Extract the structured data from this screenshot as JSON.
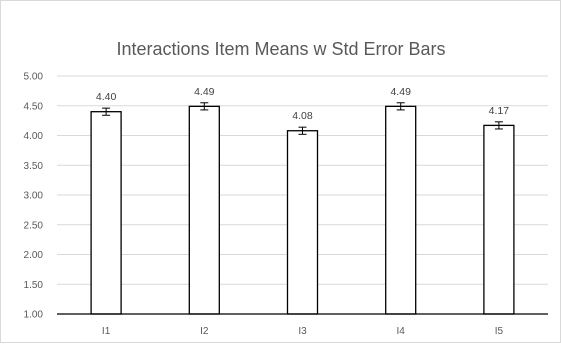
{
  "chart_data": {
    "type": "bar",
    "title": "Interactions Item Means w Std Error Bars",
    "xlabel": "",
    "ylabel": "",
    "categories": [
      "I1",
      "I2",
      "I3",
      "I4",
      "I5"
    ],
    "values": [
      4.4,
      4.49,
      4.08,
      4.49,
      4.17
    ],
    "value_labels": [
      "4.40",
      "4.49",
      "4.08",
      "4.49",
      "4.17"
    ],
    "error_bars": [
      0.06,
      0.06,
      0.06,
      0.06,
      0.06
    ],
    "ylim": [
      1.0,
      5.0
    ],
    "y_ticks": [
      1.0,
      1.5,
      2.0,
      2.5,
      3.0,
      3.5,
      4.0,
      4.5,
      5.0
    ],
    "y_tick_labels": [
      "1.00",
      "1.50",
      "2.00",
      "2.50",
      "3.00",
      "3.50",
      "4.00",
      "4.50",
      "5.00"
    ],
    "grid": true,
    "legend": "none",
    "colors": {
      "bar_fill": "#ffffff",
      "bar_stroke": "#000000",
      "grid": "#d9d9d9",
      "axis": "#000000",
      "error_bar": "#000000",
      "text": "#595959"
    }
  }
}
